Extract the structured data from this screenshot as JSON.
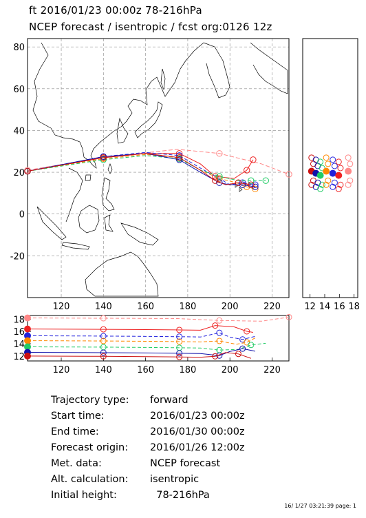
{
  "header": {
    "line1": "ft 2016/01/23 00:00z   78-216hPa",
    "line2": "NCEP forecast / isentropic / fcst org:0126 12z"
  },
  "chart_data": [
    {
      "type": "line",
      "panel": "map",
      "xticks": [
        "120",
        "140",
        "160",
        "180",
        "200",
        "220"
      ],
      "yticks": [
        "80",
        "60",
        "40",
        "20",
        "0",
        "-20"
      ],
      "xlim": [
        104,
        228
      ],
      "ylim": [
        -40,
        84
      ],
      "grid": true,
      "series": [
        {
          "color": "#ff8888",
          "x": [
            104,
            140,
            175,
            195,
            215,
            228
          ],
          "y": [
            21,
            27,
            31,
            29,
            24,
            19
          ]
        },
        {
          "color": "#ee2222",
          "x": [
            104,
            140,
            160,
            176,
            186,
            193,
            202,
            208,
            211
          ],
          "y": [
            20.5,
            27,
            29,
            29,
            24,
            18,
            17,
            21,
            26
          ]
        },
        {
          "color": "#2222dd",
          "x": [
            104,
            140,
            160,
            176,
            186,
            195,
            200,
            206,
            212
          ],
          "y": [
            20.5,
            27.5,
            29.5,
            28,
            22,
            17,
            14,
            15,
            14
          ]
        },
        {
          "color": "#ff8800",
          "x": [
            104,
            140,
            160,
            176,
            186,
            195,
            203,
            208,
            212
          ],
          "y": [
            20.5,
            26.5,
            28.5,
            27,
            21,
            17,
            15,
            13,
            12
          ]
        },
        {
          "color": "#22cc66",
          "x": [
            104,
            140,
            160,
            176,
            186,
            195,
            204,
            210,
            217
          ],
          "y": [
            20.5,
            26,
            28,
            26.5,
            21,
            18,
            16,
            16,
            16
          ]
        },
        {
          "color": "#1111aa",
          "x": [
            104,
            140,
            160,
            176,
            186,
            195,
            200,
            206,
            212
          ],
          "y": [
            20.5,
            27.5,
            29,
            26,
            20,
            15,
            14,
            14,
            13
          ]
        },
        {
          "color": "#cc1111",
          "x": [
            104,
            140,
            160,
            176,
            186,
            193,
            198,
            204,
            210
          ],
          "y": [
            20.5,
            27,
            29,
            27,
            21,
            16,
            14,
            15,
            14
          ]
        }
      ]
    },
    {
      "type": "scatter",
      "panel": "right-strip",
      "xticks": [
        "12",
        "14",
        "16",
        "18"
      ],
      "xlim": [
        11,
        18.5
      ],
      "ylim": [
        -40,
        84
      ]
    },
    {
      "type": "line",
      "panel": "bottom-strip",
      "xticks": [
        "120",
        "140",
        "160",
        "180",
        "200",
        "220"
      ],
      "yticks": [
        "18",
        "16",
        "14",
        "12"
      ],
      "xlim": [
        104,
        228
      ],
      "ylim": [
        11.2,
        18.6
      ]
    }
  ],
  "info": [
    {
      "label": "Trajectory type:",
      "value": "forward"
    },
    {
      "label": "Start time:",
      "value": "2016/01/23 00:00z"
    },
    {
      "label": "End time:",
      "value": "2016/01/30 00:00z"
    },
    {
      "label": "Forecast origin:",
      "value": "2016/01/26 12:00z"
    },
    {
      "label": "Met. data:",
      "value": "NCEP forecast"
    },
    {
      "label": "Alt. calculation:",
      "value": "isentropic"
    },
    {
      "label": "Initial height:",
      "value": "  78-216hPa"
    }
  ],
  "footer": "16/ 1/27 03:21:39 page: 1"
}
